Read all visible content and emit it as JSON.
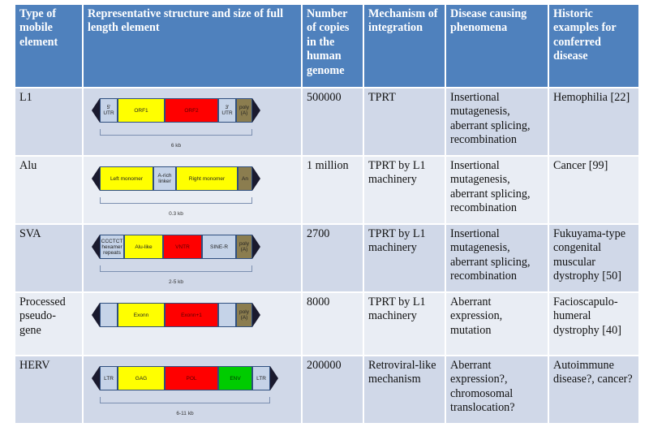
{
  "headers": [
    "Type of mobile element",
    "Representative structure and size of full length element",
    "Number of copies in the human genome",
    "Mechanism of integration",
    "Disease causing phenomena",
    "Historic examples for conferred disease"
  ],
  "rows": [
    {
      "type": "L1",
      "copies": "500000",
      "mechanism": "TPRT",
      "phenomena": "Insertional mutagenesis, aberrant splicing, recombination",
      "examples": "Hemophilia [22]",
      "diagram": {
        "segments": [
          {
            "label": "5' UTR",
            "color": "lightblue"
          },
          {
            "label": "ORF1",
            "color": "yellow"
          },
          {
            "label": "ORF2",
            "color": "red"
          },
          {
            "label": "3' UTR",
            "color": "lightblue"
          },
          {
            "label": "poly (A)",
            "color": "brown"
          }
        ],
        "size": "6 kb"
      }
    },
    {
      "type": "Alu",
      "copies": "1 million",
      "mechanism": "TPRT by L1 machinery",
      "phenomena": "Insertional mutagenesis, aberrant splicing, recombination",
      "examples": "Cancer [99]",
      "diagram": {
        "segments": [
          {
            "label": "Left monomer",
            "color": "yellow"
          },
          {
            "label": "A-rich linker",
            "color": "lightblue"
          },
          {
            "label": "Right monomer",
            "color": "yellow"
          },
          {
            "label": "An",
            "color": "brown"
          }
        ],
        "size": "0.3 kb"
      }
    },
    {
      "type": "SVA",
      "copies": "2700",
      "mechanism": "TPRT by L1 machinery",
      "phenomena": "Insertional mutagenesis, aberrant splicing, recombination",
      "examples": "Fukuyama-type congenital muscular dystrophy [50]",
      "diagram": {
        "segments": [
          {
            "label": "CCCTCT hexamer repeats",
            "color": "lightblue"
          },
          {
            "label": "Alu-like",
            "color": "yellow"
          },
          {
            "label": "VNTR",
            "color": "red"
          },
          {
            "label": "SINE-R",
            "color": "lightblue"
          },
          {
            "label": "poly (A)",
            "color": "brown"
          }
        ],
        "size": "2-5 kb"
      }
    },
    {
      "type": "Processed pseudo-gene",
      "copies": "8000",
      "mechanism": "TPRT by L1 machinery",
      "phenomena": "Aberrant expression, mutation",
      "examples": "Facioscapulo-humeral dystrophy [40]",
      "diagram": {
        "segments": [
          {
            "label": "Exonn",
            "color": "yellow"
          },
          {
            "label": "Exonn+1",
            "color": "red"
          },
          {
            "label": "poly (A)",
            "color": "brown"
          }
        ],
        "size": ""
      }
    },
    {
      "type": "HERV",
      "copies": "200000",
      "mechanism": "Retroviral-like mechanism",
      "phenomena": "Aberrant expression?, chromosomal translocation?",
      "examples": "Autoimmune disease?, cancer?",
      "diagram": {
        "segments": [
          {
            "label": "LTR",
            "color": "lightblue"
          },
          {
            "label": "GAG",
            "color": "yellow"
          },
          {
            "label": "POL",
            "color": "red"
          },
          {
            "label": "ENV",
            "color": "green"
          },
          {
            "label": "LTR",
            "color": "lightblue"
          }
        ],
        "size": "6-11 kb"
      }
    }
  ]
}
